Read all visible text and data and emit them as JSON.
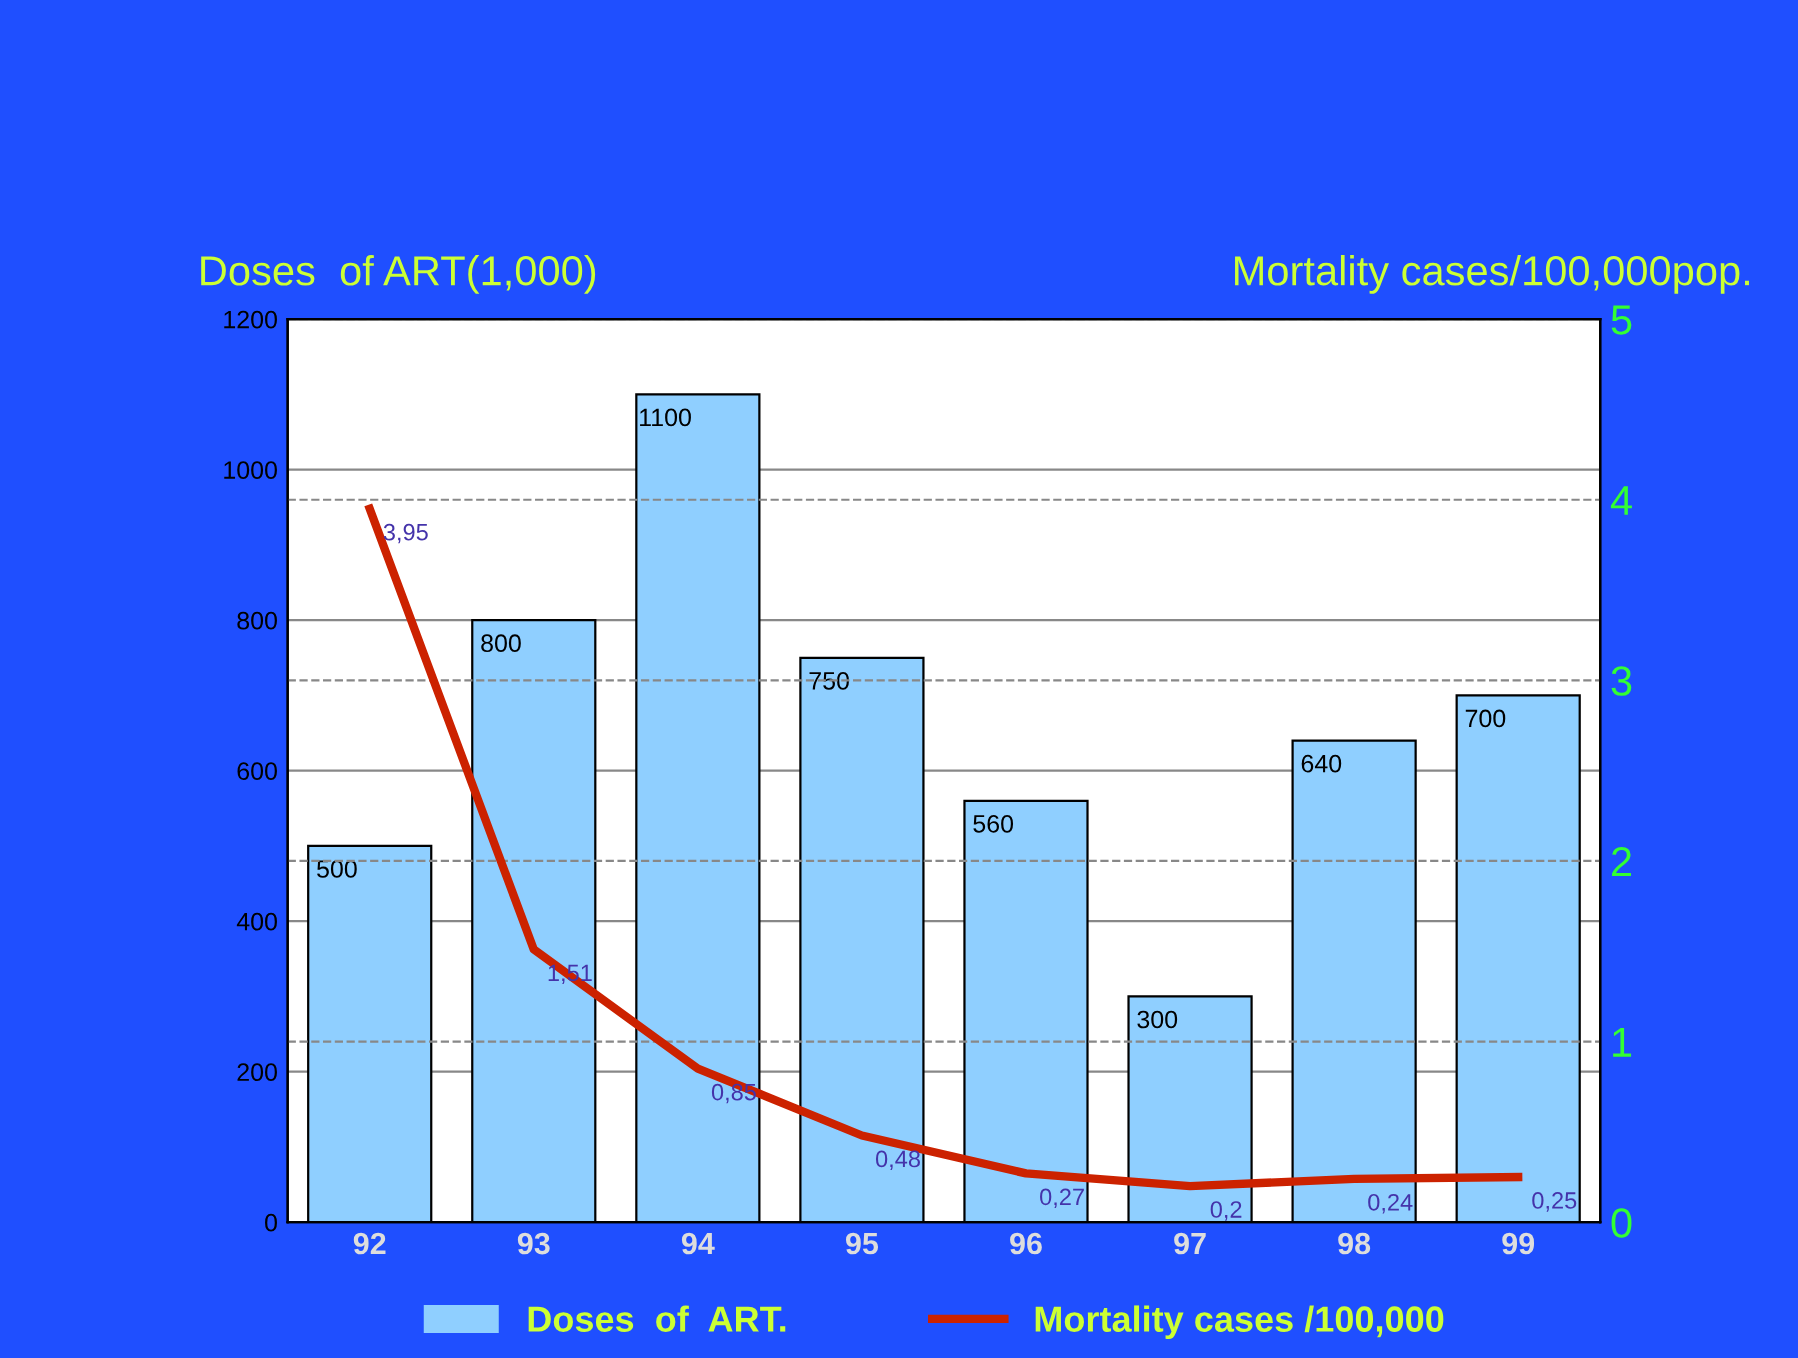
{
  "chart_data": {
    "type": "bar",
    "categories": [
      "92",
      "93",
      "94",
      "95",
      "96",
      "97",
      "98",
      "99"
    ],
    "ylabel": "Doses  of ART(1,000)",
    "y2label": "Mortality cases/100,000pop.",
    "ylim": [
      0,
      1200
    ],
    "yticks": [
      0,
      200,
      400,
      600,
      800,
      1000,
      1200
    ],
    "y2lim": [
      0,
      5
    ],
    "y2ticks": [
      0,
      1,
      2,
      3,
      4,
      5
    ],
    "grid": "y",
    "legend": "bottom",
    "data_labels": true,
    "series": [
      {
        "name": "Doses  of  ART.",
        "color": "#8fcfff",
        "values": [
          500,
          800,
          1100,
          750,
          560,
          300,
          640,
          700
        ]
      },
      {
        "name": "Mortality cases /100,000",
        "type": "line",
        "axis": "y2",
        "color": "#cc2200",
        "values": [
          3.95,
          1.51,
          0.85,
          0.48,
          0.27,
          0.2,
          0.24,
          0.25
        ],
        "value_labels": [
          "3,95",
          "1,51",
          "0,85",
          "0,48",
          "0,27",
          "0,2",
          "0,24",
          "0,25"
        ],
        "marker": "none"
      }
    ]
  }
}
